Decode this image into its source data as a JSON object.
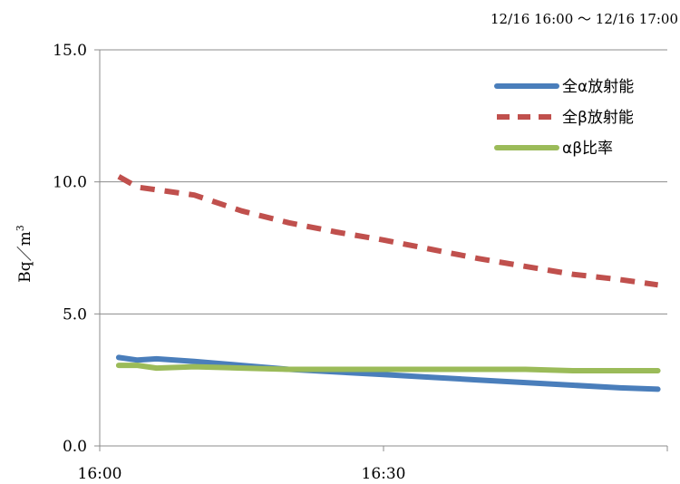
{
  "chart_data": {
    "type": "line",
    "subtitle": "12/16 16:00 ～ 12/16 17:00",
    "ylabel": "Bq／m",
    "ylabel_superscript": "3",
    "xlabel": "",
    "ylim": [
      0,
      15
    ],
    "yticks": [
      "0.0",
      "5.0",
      "10.0",
      "15.0"
    ],
    "ytick_values": [
      0,
      5,
      10,
      15
    ],
    "xlim": [
      0,
      60
    ],
    "xticks": [
      "16:00",
      "16:30"
    ],
    "xtick_values": [
      0,
      30
    ],
    "grid": "horizontal",
    "legend_position": "top-right",
    "x": [
      2,
      4,
      6,
      10,
      15,
      20,
      25,
      30,
      35,
      40,
      45,
      50,
      55,
      59
    ],
    "series": [
      {
        "name": "全α放射能",
        "color": "#4a7ebb",
        "style": "solid",
        "values": [
          3.35,
          3.25,
          3.3,
          3.2,
          3.05,
          2.9,
          2.8,
          2.7,
          2.6,
          2.5,
          2.4,
          2.3,
          2.2,
          2.15
        ]
      },
      {
        "name": "全β放射能",
        "color": "#c0504d",
        "style": "dashed",
        "values": [
          10.2,
          9.8,
          9.7,
          9.5,
          8.9,
          8.45,
          8.1,
          7.8,
          7.45,
          7.1,
          6.8,
          6.5,
          6.3,
          6.1
        ]
      },
      {
        "name": "αβ比率",
        "color": "#9bbb59",
        "style": "solid",
        "values": [
          3.05,
          3.05,
          2.95,
          3.0,
          2.95,
          2.9,
          2.9,
          2.9,
          2.9,
          2.9,
          2.9,
          2.85,
          2.85,
          2.85
        ]
      }
    ]
  }
}
